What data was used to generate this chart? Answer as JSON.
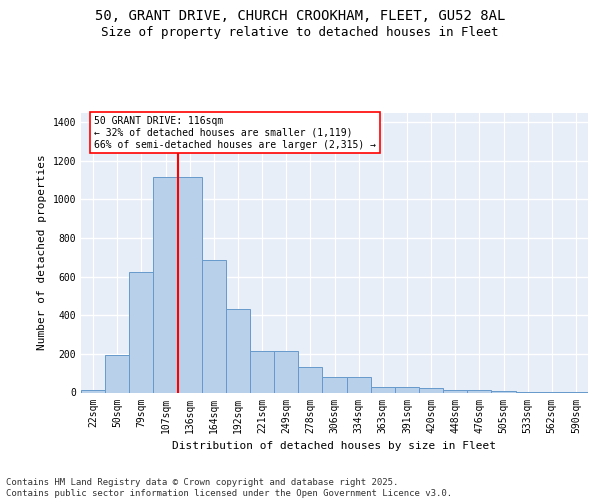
{
  "title_line1": "50, GRANT DRIVE, CHURCH CROOKHAM, FLEET, GU52 8AL",
  "title_line2": "Size of property relative to detached houses in Fleet",
  "xlabel": "Distribution of detached houses by size in Fleet",
  "ylabel": "Number of detached properties",
  "categories": [
    "22sqm",
    "50sqm",
    "79sqm",
    "107sqm",
    "136sqm",
    "164sqm",
    "192sqm",
    "221sqm",
    "249sqm",
    "278sqm",
    "306sqm",
    "334sqm",
    "363sqm",
    "391sqm",
    "420sqm",
    "448sqm",
    "476sqm",
    "505sqm",
    "533sqm",
    "562sqm",
    "590sqm"
  ],
  "values": [
    15,
    195,
    625,
    1115,
    1115,
    685,
    430,
    215,
    215,
    130,
    80,
    80,
    30,
    30,
    25,
    15,
    12,
    8,
    5,
    5,
    3
  ],
  "bar_color": "#b8d0ea",
  "bar_edge_color": "#6699cc",
  "background_color": "#e8eef8",
  "grid_color": "#ffffff",
  "vline_color": "red",
  "vline_x": 3.5,
  "annotation_text": "50 GRANT DRIVE: 116sqm\n← 32% of detached houses are smaller (1,119)\n66% of semi-detached houses are larger (2,315) →",
  "ylim": [
    0,
    1450
  ],
  "yticks": [
    0,
    200,
    400,
    600,
    800,
    1000,
    1200,
    1400
  ],
  "footer_text": "Contains HM Land Registry data © Crown copyright and database right 2025.\nContains public sector information licensed under the Open Government Licence v3.0.",
  "title_fontsize": 10,
  "subtitle_fontsize": 9,
  "axis_label_fontsize": 8,
  "tick_fontsize": 7,
  "annot_fontsize": 7,
  "footer_fontsize": 6.5
}
